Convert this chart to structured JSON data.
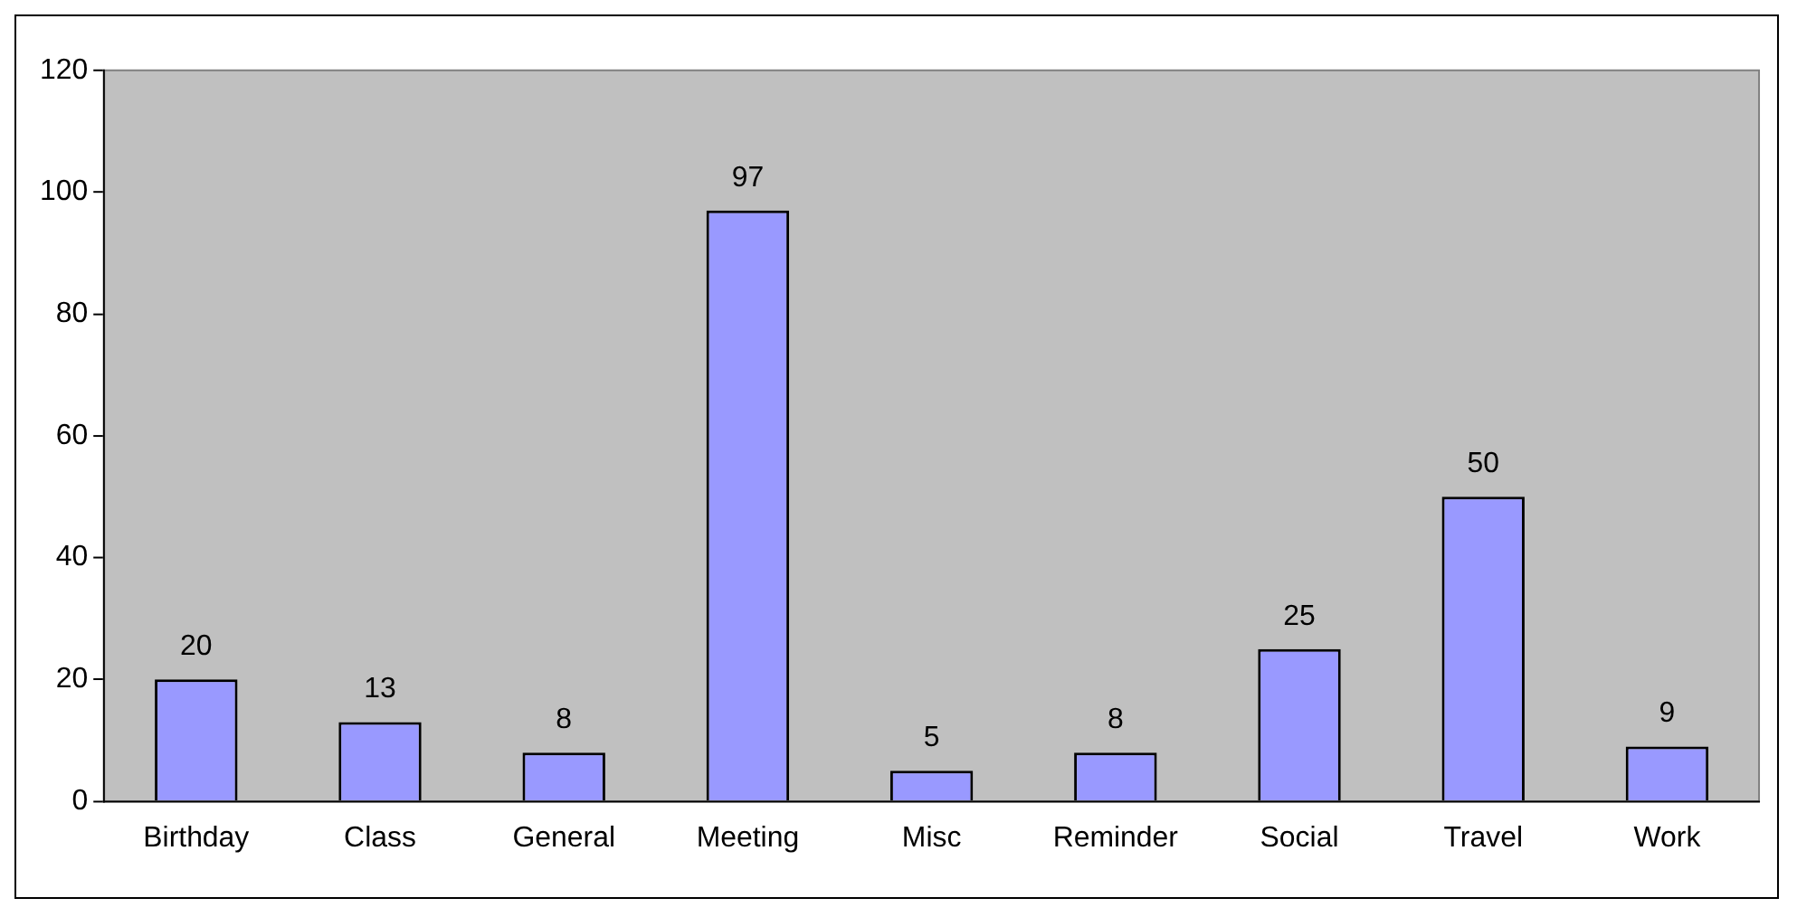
{
  "chart_data": {
    "type": "bar",
    "categories": [
      "Birthday",
      "Class",
      "General",
      "Meeting",
      "Misc",
      "Reminder",
      "Social",
      "Travel",
      "Work"
    ],
    "values": [
      20,
      13,
      8,
      97,
      5,
      8,
      25,
      50,
      9
    ],
    "color": "#9999ff",
    "ylim": [
      0,
      120
    ],
    "yticks": [
      0,
      20,
      40,
      60,
      80,
      100,
      120
    ],
    "grid": false,
    "legend": false,
    "data_labels": true
  }
}
